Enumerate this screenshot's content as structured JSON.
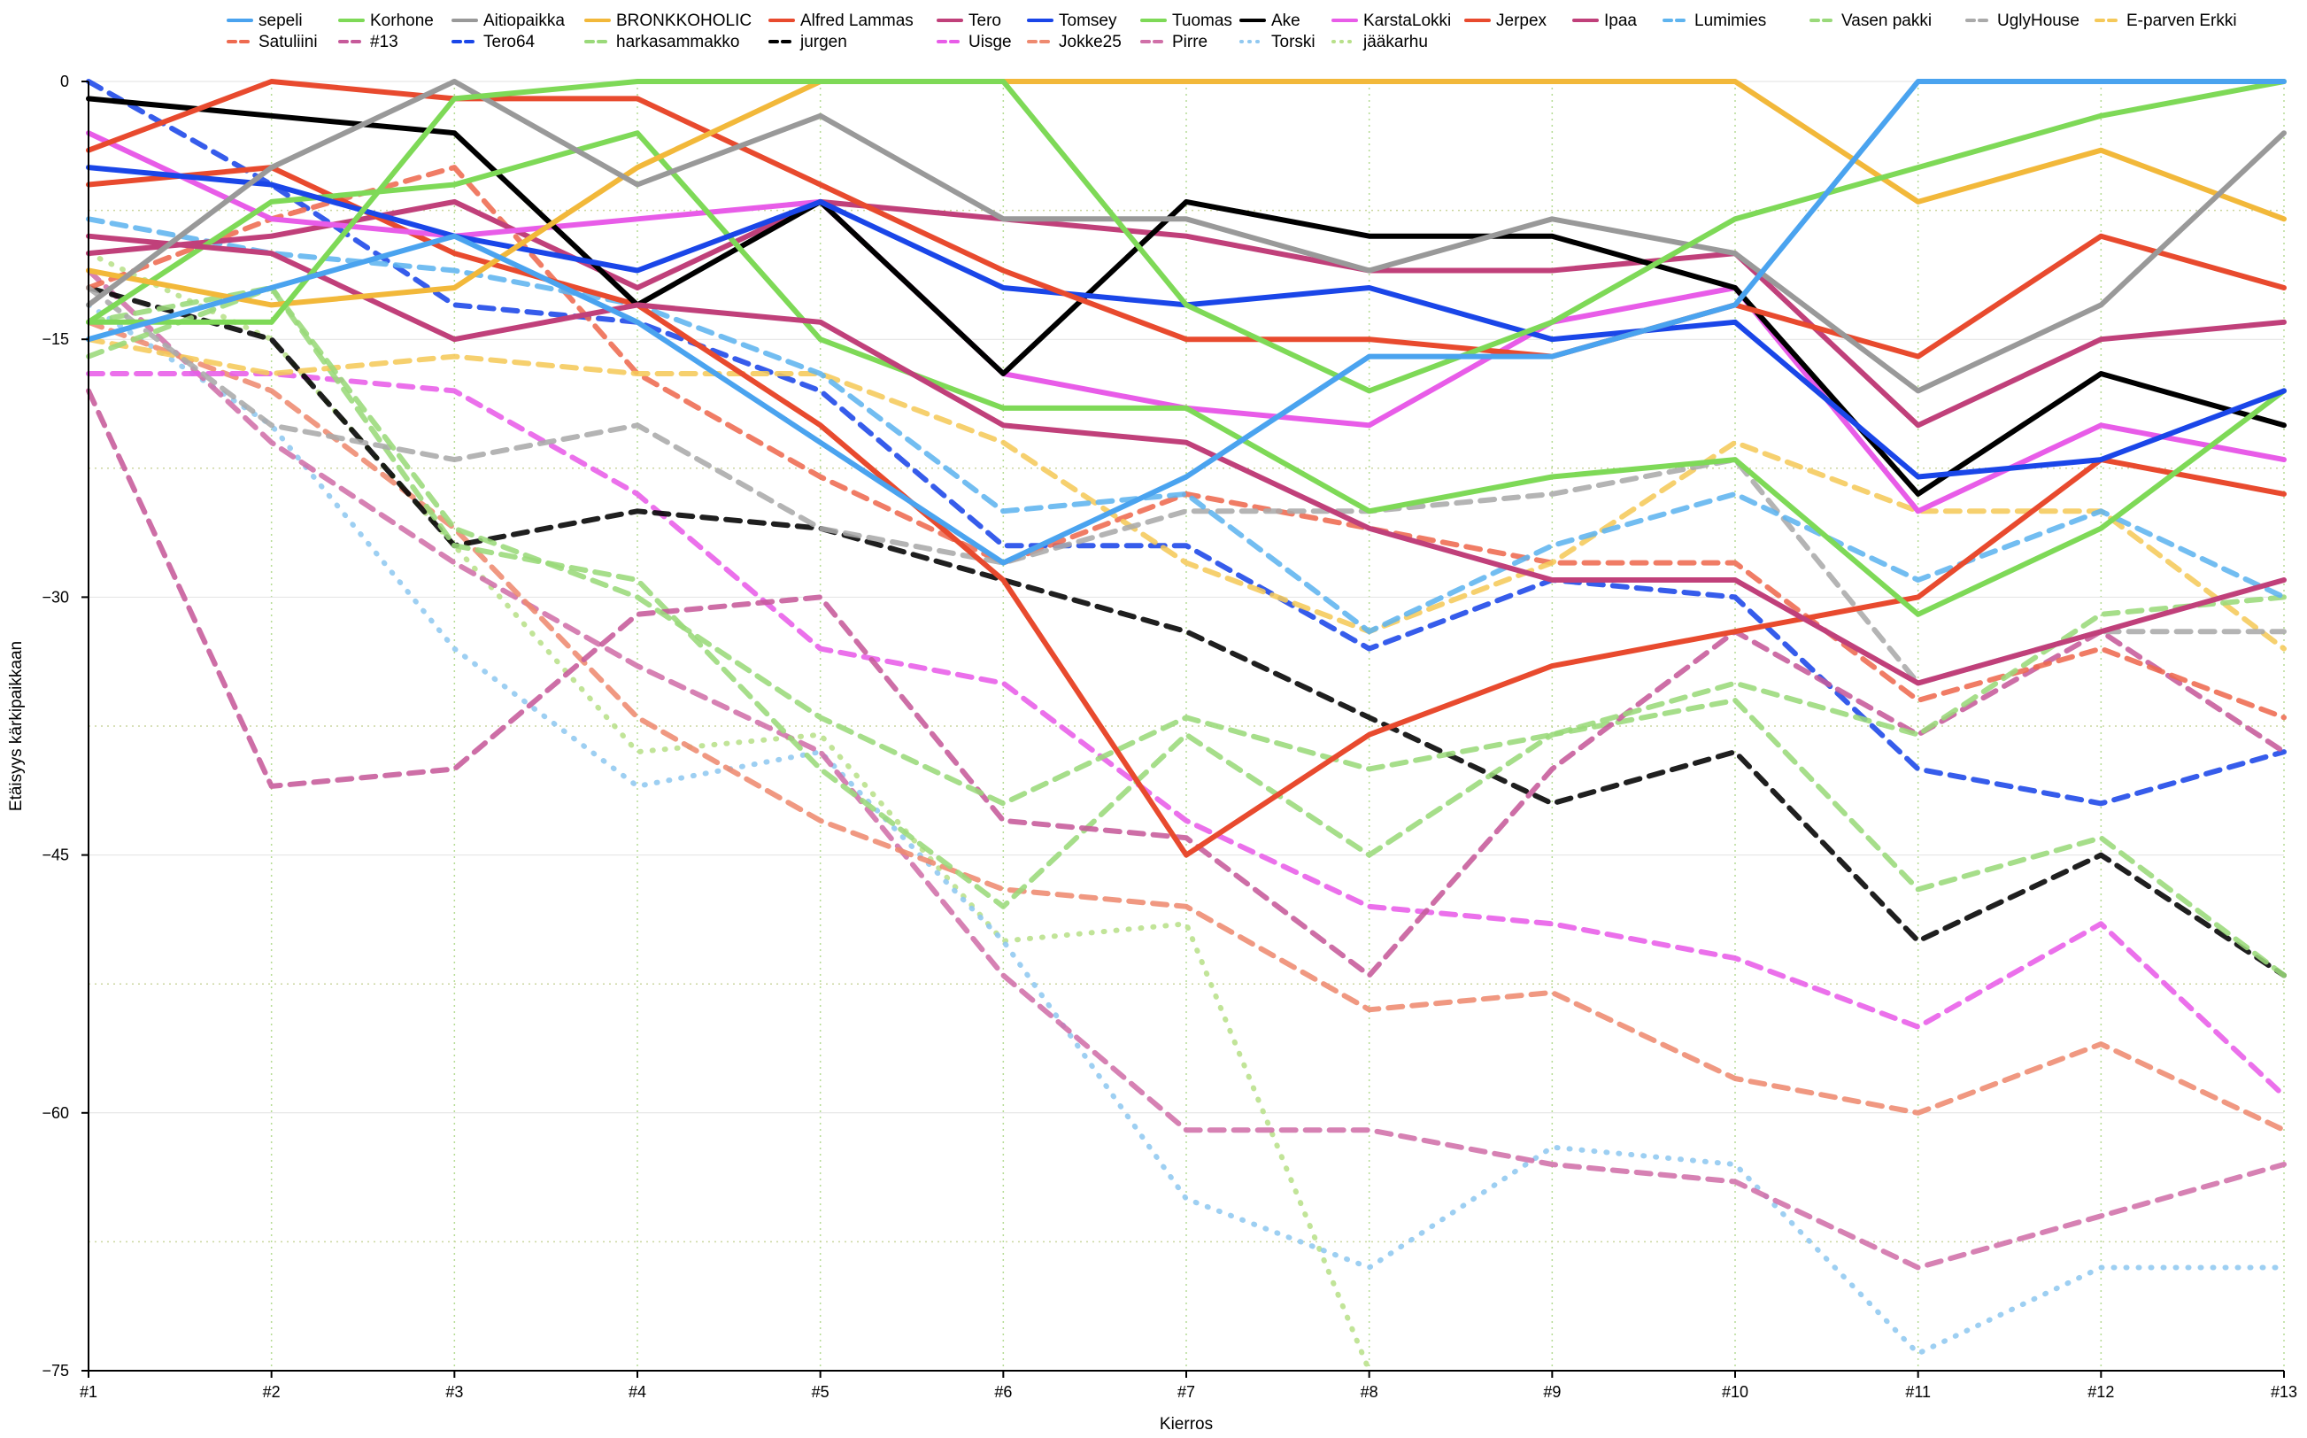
{
  "chart_data": {
    "type": "line",
    "title": "",
    "xlabel": "Kierros",
    "ylabel": "Etäisyys kärkipaikkaan",
    "ylim": [
      -75,
      0
    ],
    "yticks": [
      0,
      -15,
      -30,
      -45,
      -60,
      -75
    ],
    "grid": "dotted vertical per round, dotted horizontal",
    "legend_position": "top",
    "categories": [
      "#1",
      "#2",
      "#3",
      "#4",
      "#5",
      "#6",
      "#7",
      "#8",
      "#9",
      "#10",
      "#11",
      "#12",
      "#13"
    ],
    "series": [
      {
        "name": "sepeli",
        "color": "#4aa3ef",
        "style": "solid",
        "values": [
          -15,
          -12,
          -9,
          -14,
          -21,
          -28,
          -23,
          -16,
          -16,
          -13,
          0,
          0,
          0
        ]
      },
      {
        "name": "Korhone",
        "color": "#7ed957",
        "style": "solid",
        "values": [
          -14,
          -14,
          -1,
          0,
          0,
          0,
          -13,
          -18,
          -14,
          -8,
          -5,
          -2,
          0
        ]
      },
      {
        "name": "Aitiopaikka",
        "color": "#999999",
        "style": "solid",
        "values": [
          -13,
          -5,
          0,
          -6,
          -2,
          -8,
          -8,
          -11,
          -8,
          -10,
          -18,
          -13,
          -3
        ]
      },
      {
        "name": "BRONKKOHOLIC",
        "color": "#f2b83a",
        "style": "solid",
        "values": [
          -11,
          -13,
          -12,
          -5,
          0,
          0,
          0,
          0,
          0,
          0,
          -7,
          -4,
          -8
        ]
      },
      {
        "name": "Alfred Lammas",
        "color": "#e84a2e",
        "style": "solid",
        "values": [
          -4,
          0,
          -1,
          -1,
          -6,
          -11,
          -15,
          -15,
          -16,
          -13,
          -16,
          -9,
          -12
        ]
      },
      {
        "name": "Tero",
        "color": "#c0407a",
        "style": "solid",
        "values": [
          -9,
          -10,
          -15,
          -13,
          -14,
          -20,
          -21,
          -26,
          -29,
          -29,
          -35,
          -32,
          -29
        ]
      },
      {
        "name": "Tomsey",
        "color": "#1a46e8",
        "style": "solid",
        "values": [
          -5,
          -6,
          -9,
          -11,
          -7,
          -12,
          -13,
          -12,
          -15,
          -14,
          -23,
          -22,
          -18
        ]
      },
      {
        "name": "Tuomas",
        "color": "#7ed957",
        "style": "solid",
        "values": [
          -14,
          -7,
          -6,
          -3,
          -15,
          -19,
          -19,
          -25,
          -23,
          -22,
          -31,
          -26,
          -18
        ]
      },
      {
        "name": "Ake",
        "color": "#000000",
        "style": "solid",
        "values": [
          -1,
          -2,
          -3,
          -13,
          -7,
          -17,
          -7,
          -9,
          -9,
          -12,
          -24,
          -17,
          -20
        ]
      },
      {
        "name": "KarstaLokki",
        "color": "#e85ce8",
        "style": "solid",
        "values": [
          -3,
          -8,
          -9,
          -8,
          -7,
          -17,
          -19,
          -20,
          -14,
          -12,
          -25,
          -20,
          -22
        ]
      },
      {
        "name": "Jerpex",
        "color": "#e84a2e",
        "style": "solid",
        "values": [
          -6,
          -5,
          -10,
          -13,
          -20,
          -29,
          -45,
          -38,
          -34,
          -32,
          -30,
          -22,
          -24
        ]
      },
      {
        "name": "Ipaa",
        "color": "#c0407a",
        "style": "solid",
        "values": [
          -10,
          -9,
          -7,
          -12,
          -7,
          -8,
          -9,
          -11,
          -11,
          -10,
          -20,
          -15,
          -14
        ]
      },
      {
        "name": "Lumimies",
        "color": "#5fb4ef",
        "style": "dashed",
        "values": [
          -8,
          -10,
          -11,
          -13,
          -17,
          -25,
          -24,
          -32,
          -27,
          -24,
          -29,
          -25,
          -30
        ]
      },
      {
        "name": "Vasen pakki",
        "color": "#9ad97a",
        "style": "dashed",
        "values": [
          -16,
          -12,
          -26,
          -30,
          -37,
          -42,
          -37,
          -40,
          -38,
          -35,
          -38,
          -31,
          -30
        ]
      },
      {
        "name": "UglyHouse",
        "color": "#aaaaaa",
        "style": "dashed",
        "values": [
          -12,
          -20,
          -22,
          -20,
          -26,
          -28,
          -25,
          -25,
          -24,
          -22,
          -35,
          -32,
          -32
        ]
      },
      {
        "name": "E-parven Erkki",
        "color": "#f5c95a",
        "style": "dashed",
        "values": [
          -15,
          -17,
          -16,
          -17,
          -17,
          -21,
          -28,
          -32,
          -28,
          -21,
          -25,
          -25,
          -33
        ]
      },
      {
        "name": "Satuliini",
        "color": "#ee6a50",
        "style": "dashed",
        "values": [
          -12,
          -8,
          -5,
          -17,
          -23,
          -28,
          -24,
          -26,
          -28,
          -28,
          -36,
          -33,
          -37
        ]
      },
      {
        "name": "#13",
        "color": "#c65a9a",
        "style": "dashed",
        "values": [
          -18,
          -41,
          -40,
          -31,
          -30,
          -43,
          -44,
          -52,
          -40,
          -32,
          -38,
          -32,
          -39
        ]
      },
      {
        "name": "Tero64",
        "color": "#1a46e8",
        "style": "dashed",
        "values": [
          0,
          -6,
          -13,
          -14,
          -18,
          -27,
          -27,
          -33,
          -29,
          -30,
          -40,
          -42,
          -39
        ]
      },
      {
        "name": "harkasammakko",
        "color": "#9ad97a",
        "style": "dashed",
        "values": [
          -14,
          -12,
          -27,
          -29,
          -40,
          -48,
          -38,
          -45,
          -38,
          -36,
          -47,
          -44,
          -52
        ]
      },
      {
        "name": "jurgen",
        "color": "#000000",
        "style": "dashed",
        "values": [
          -12,
          -15,
          -27,
          -25,
          -26,
          -29,
          -32,
          -37,
          -42,
          -39,
          -50,
          -45,
          -52
        ]
      },
      {
        "name": "Uisge",
        "color": "#e85ce8",
        "style": "dashed",
        "values": [
          -17,
          -17,
          -18,
          -24,
          -33,
          -35,
          -43,
          -48,
          -49,
          -51,
          -55,
          -49,
          -59
        ]
      },
      {
        "name": "Jokke25",
        "color": "#ee8a70",
        "style": "dashed",
        "values": [
          -14,
          -18,
          -26,
          -37,
          -43,
          -47,
          -48,
          -54,
          -53,
          -58,
          -60,
          -56,
          -61
        ]
      },
      {
        "name": "Pirre",
        "color": "#d070a8",
        "style": "dashed",
        "values": [
          -11,
          -21,
          -28,
          -34,
          -39,
          -52,
          -61,
          -61,
          -63,
          -64,
          -69,
          -66,
          -63
        ]
      },
      {
        "name": "Torski",
        "color": "#90c8f0",
        "style": "dotted",
        "values": [
          -13,
          -20,
          -33,
          -41,
          -39,
          -50,
          -65,
          -69,
          -62,
          -63,
          -74,
          -69,
          -69
        ]
      },
      {
        "name": "jääkarhu",
        "color": "#b8e08a",
        "style": "dotted",
        "values": [
          -10,
          -15,
          -27,
          -39,
          -38,
          -50,
          -49,
          -75,
          null,
          null,
          null,
          null,
          null
        ]
      }
    ]
  }
}
